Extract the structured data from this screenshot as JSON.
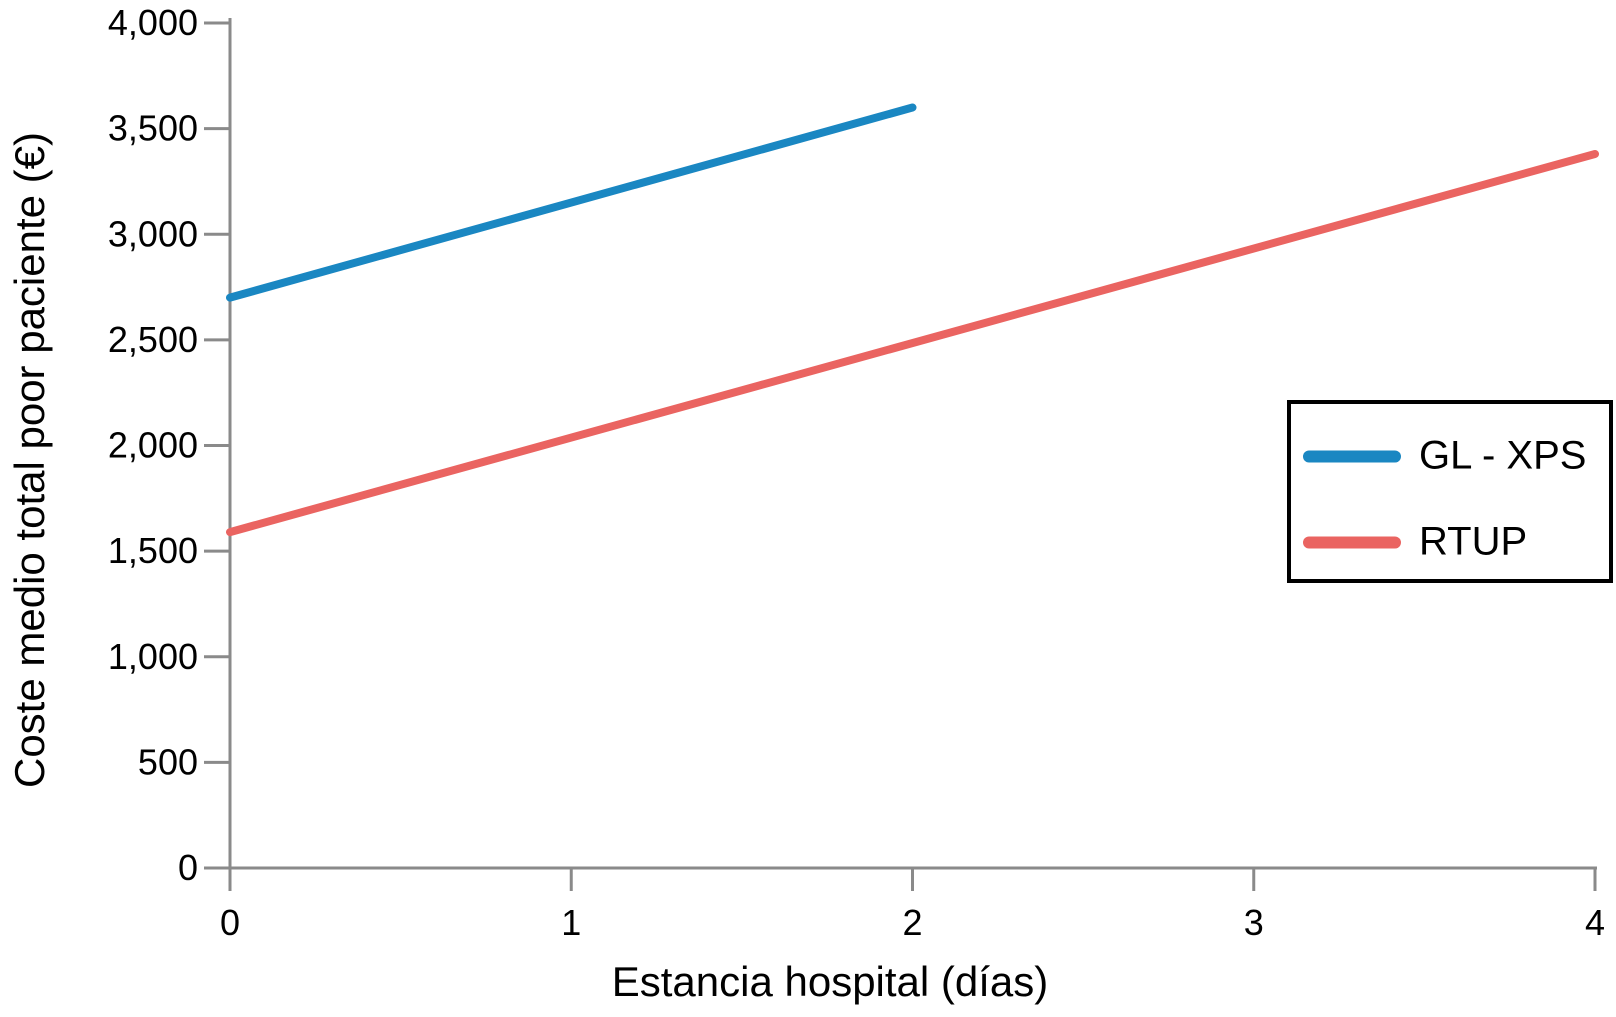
{
  "chart_data": {
    "type": "line",
    "title": "",
    "xlabel": "Estancia hospital (días)",
    "ylabel": "Coste medio total poor paciente (€)",
    "xlim": [
      0,
      4
    ],
    "ylim": [
      0,
      4000
    ],
    "grid": false,
    "legend_position": "right-center",
    "legend_border": true,
    "axis_color": "#8a8a8a",
    "text_color": "#000000",
    "xticks": {
      "values": [
        0,
        1,
        2,
        3,
        4
      ],
      "labels": [
        "0",
        "1",
        "2",
        "3",
        "4"
      ]
    },
    "yticks": {
      "values": [
        0,
        500,
        1000,
        1500,
        2000,
        2500,
        3000,
        3500,
        4000
      ],
      "labels": [
        "0",
        "500",
        "1,000",
        "1,500",
        "2,000",
        "2,500",
        "3,000",
        "3,500",
        "4,000"
      ]
    },
    "series": [
      {
        "name": "GL - XPS",
        "color": "#1a87c2",
        "x": [
          0,
          2
        ],
        "y": [
          2700,
          3600
        ]
      },
      {
        "name": "RTUP",
        "color": "#ea6461",
        "x": [
          0,
          4
        ],
        "y": [
          1590,
          3380
        ]
      }
    ]
  }
}
